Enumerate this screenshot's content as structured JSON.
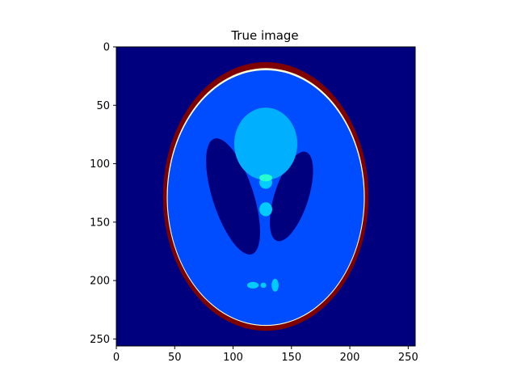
{
  "chart_data": {
    "type": "heatmap",
    "title": "True image",
    "xlabel": "",
    "ylabel": "",
    "image_size": [
      256,
      256
    ],
    "xlim": [
      0,
      256
    ],
    "ylim": [
      256,
      0
    ],
    "x_ticks": [
      0,
      50,
      100,
      150,
      200,
      250
    ],
    "y_ticks": [
      0,
      50,
      100,
      150,
      200,
      250
    ],
    "grid": false,
    "colormap": "jet",
    "colors": {
      "background": "#00007f",
      "skull": "#7f0000",
      "rim": "#ffffd8",
      "brain": "#004cff",
      "large_blob": "#00b0ff",
      "small_features": "#00ccff",
      "bright_spot": "#29ffce"
    },
    "regions": [
      {
        "name": "skull",
        "cx": 128,
        "cy": 128,
        "rx": 88,
        "ry": 115,
        "color": "#7f0000"
      },
      {
        "name": "rim",
        "cx": 128,
        "cy": 128.5,
        "rx": 84.8,
        "ry": 110.3,
        "color": "#ffffd8"
      },
      {
        "name": "brain",
        "cx": 128,
        "cy": 129,
        "rx": 84,
        "ry": 109,
        "color": "#004cff"
      },
      {
        "name": "ventricle-right",
        "cx": 150,
        "cy": 128,
        "rx": 14.5,
        "ry": 40,
        "angle": 18,
        "color": "#00007f"
      },
      {
        "name": "ventricle-left",
        "cx": 100,
        "cy": 128,
        "rx": 17.5,
        "ry": 52,
        "angle": -18,
        "color": "#00007f"
      },
      {
        "name": "large-blob",
        "cx": 128,
        "cy": 83,
        "rx": 27,
        "ry": 31,
        "color": "#00b0ff"
      },
      {
        "name": "spot-upper",
        "cx": 128,
        "cy": 116,
        "rx": 5.5,
        "ry": 5.5,
        "color": "#00ccff"
      },
      {
        "name": "spot-bright",
        "cx": 128,
        "cy": 112,
        "rx": 5.5,
        "ry": 3,
        "color": "#29ffce"
      },
      {
        "name": "spot-middle",
        "cx": 128,
        "cy": 139,
        "rx": 5.5,
        "ry": 6,
        "color": "#00ccff"
      },
      {
        "name": "dot-left",
        "cx": 117,
        "cy": 204,
        "rx": 5,
        "ry": 2.8,
        "color": "#00ccff"
      },
      {
        "name": "dot-mid",
        "cx": 126,
        "cy": 204,
        "rx": 2.5,
        "ry": 2.2,
        "color": "#00ccff"
      },
      {
        "name": "dot-right",
        "cx": 136,
        "cy": 204,
        "rx": 3,
        "ry": 5.5,
        "color": "#00ccff"
      }
    ]
  }
}
